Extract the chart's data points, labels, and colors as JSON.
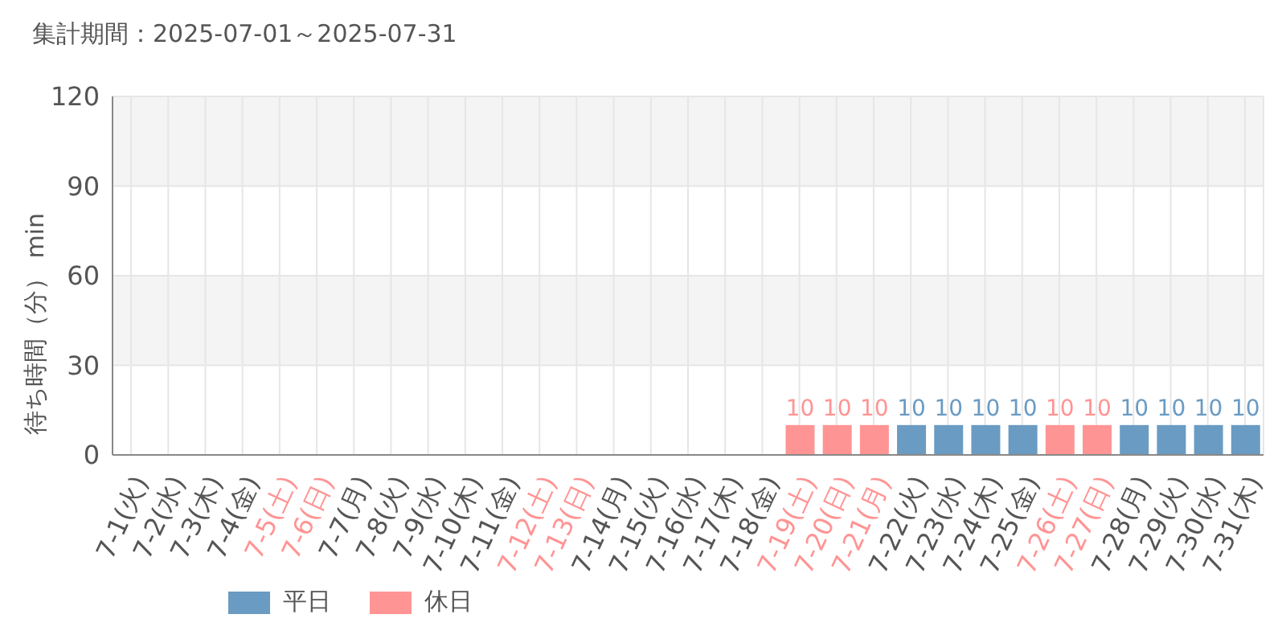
{
  "chart_data": {
    "type": "bar",
    "title": "集計期間：2025-07-01～2025-07-31",
    "ylabel": "待ち時間（分） min",
    "categories": [
      "7-1(火)",
      "7-2(水)",
      "7-3(木)",
      "7-4(金)",
      "7-5(土)",
      "7-6(日)",
      "7-7(月)",
      "7-8(火)",
      "7-9(水)",
      "7-10(木)",
      "7-11(金)",
      "7-12(土)",
      "7-13(日)",
      "7-14(月)",
      "7-15(火)",
      "7-16(水)",
      "7-17(木)",
      "7-18(金)",
      "7-19(土)",
      "7-20(日)",
      "7-21(月)",
      "7-22(火)",
      "7-23(水)",
      "7-24(木)",
      "7-25(金)",
      "7-26(土)",
      "7-27(日)",
      "7-28(月)",
      "7-29(火)",
      "7-30(水)",
      "7-31(木)"
    ],
    "series": [
      {
        "name": "平日",
        "color": "#6a9bc3",
        "values": [
          0,
          0,
          0,
          0,
          null,
          null,
          0,
          0,
          0,
          0,
          0,
          null,
          null,
          0,
          0,
          0,
          0,
          0,
          null,
          null,
          null,
          10,
          10,
          10,
          10,
          null,
          null,
          10,
          10,
          10,
          10
        ],
        "value_labels": [
          null,
          null,
          null,
          null,
          null,
          null,
          null,
          null,
          null,
          null,
          null,
          null,
          null,
          null,
          null,
          null,
          null,
          null,
          null,
          null,
          null,
          "10",
          "10",
          "10",
          "10",
          null,
          null,
          "10",
          "10",
          "10",
          "10"
        ]
      },
      {
        "name": "休日",
        "color": "#ff9494",
        "values": [
          null,
          null,
          null,
          null,
          0,
          0,
          null,
          null,
          null,
          null,
          null,
          0,
          0,
          null,
          null,
          null,
          null,
          null,
          10,
          10,
          10,
          null,
          null,
          null,
          null,
          10,
          10,
          null,
          null,
          null,
          null
        ],
        "value_labels": [
          null,
          null,
          null,
          null,
          null,
          null,
          null,
          null,
          null,
          null,
          null,
          null,
          null,
          null,
          null,
          null,
          null,
          null,
          "10",
          "10",
          "10",
          null,
          null,
          null,
          null,
          "10",
          "10",
          null,
          null,
          null,
          null
        ]
      }
    ],
    "stacked": true,
    "ylim": [
      0,
      120
    ],
    "yticks": [
      0,
      30,
      60,
      90,
      120
    ],
    "grid": true,
    "legend": "bottom left"
  }
}
